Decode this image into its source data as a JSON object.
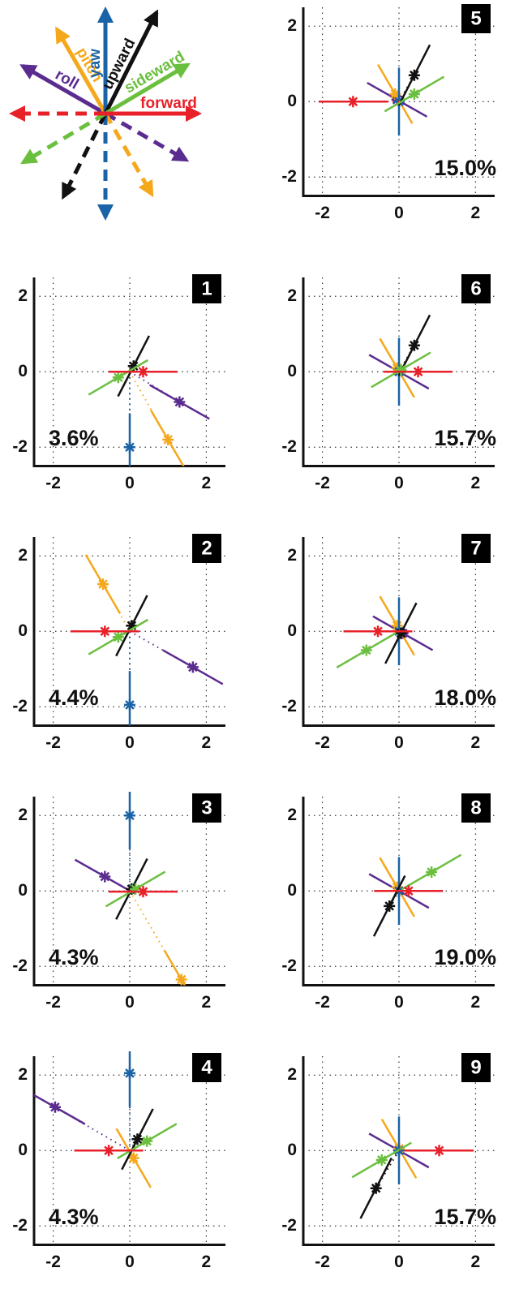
{
  "legend": {
    "items": [
      {
        "label": "roll",
        "color": "#5b2c8f"
      },
      {
        "label": "pitch",
        "color": "#f5a81c"
      },
      {
        "label": "yaw",
        "color": "#1a63a6"
      },
      {
        "label": "upward",
        "color": "#111111"
      },
      {
        "label": "sideward",
        "color": "#6bbf3f"
      },
      {
        "label": "forward",
        "color": "#e8202a"
      }
    ]
  },
  "chart_data": [
    {
      "type": "scatter",
      "title": "1",
      "annotation": "3.6%",
      "xlim": [
        -2.5,
        2.5
      ],
      "ylim": [
        -2.5,
        2.5
      ],
      "xticks": [
        -2,
        0,
        2
      ],
      "yticks": [
        -2,
        0,
        2
      ],
      "grid": true,
      "series": [
        {
          "x": [
            1.3
          ],
          "values": [
            -0.8
          ]
        },
        {
          "x": [
            1.0
          ],
          "values": [
            -1.8
          ]
        },
        {
          "x": [
            0
          ],
          "values": [
            -2.0
          ]
        },
        {
          "x": [
            0.1
          ],
          "values": [
            0.15
          ]
        },
        {
          "x": [
            -0.3
          ],
          "values": [
            -0.15
          ]
        },
        {
          "x": [
            0.35
          ],
          "values": [
            0
          ]
        }
      ]
    },
    {
      "type": "scatter",
      "title": "2",
      "annotation": "4.4%",
      "xlim": [
        -2.5,
        2.5
      ],
      "ylim": [
        -2.5,
        2.5
      ],
      "xticks": [
        -2,
        0,
        2
      ],
      "yticks": [
        -2,
        0,
        2
      ],
      "grid": true,
      "series": [
        {
          "x": [
            1.65
          ],
          "values": [
            -0.95
          ]
        },
        {
          "x": [
            -0.7
          ],
          "values": [
            1.25
          ]
        },
        {
          "x": [
            0
          ],
          "values": [
            -1.95
          ]
        },
        {
          "x": [
            0.05
          ],
          "values": [
            0.15
          ]
        },
        {
          "x": [
            -0.3
          ],
          "values": [
            -0.15
          ]
        },
        {
          "x": [
            -0.65
          ],
          "values": [
            0
          ]
        }
      ]
    },
    {
      "type": "scatter",
      "title": "3",
      "annotation": "4.3%",
      "xlim": [
        -2.5,
        2.5
      ],
      "ylim": [
        -2.5,
        2.5
      ],
      "xticks": [
        -2,
        0,
        2
      ],
      "yticks": [
        -2,
        0,
        2
      ],
      "grid": true,
      "series": [
        {
          "x": [
            -0.65
          ],
          "values": [
            0.38
          ]
        },
        {
          "x": [
            1.35
          ],
          "values": [
            -2.35
          ]
        },
        {
          "x": [
            0
          ],
          "values": [
            2.0
          ]
        },
        {
          "x": [
            0.05
          ],
          "values": [
            0.05
          ]
        },
        {
          "x": [
            0.15
          ],
          "values": [
            0.05
          ]
        },
        {
          "x": [
            0.35
          ],
          "values": [
            -0.02
          ]
        }
      ]
    },
    {
      "type": "scatter",
      "title": "4",
      "annotation": "4.3%",
      "xlim": [
        -2.5,
        2.5
      ],
      "ylim": [
        -2.5,
        2.5
      ],
      "xticks": [
        -2,
        0,
        2
      ],
      "yticks": [
        -2,
        0,
        2
      ],
      "grid": true,
      "series": [
        {
          "x": [
            -1.95
          ],
          "values": [
            1.15
          ]
        },
        {
          "x": [
            0.1
          ],
          "values": [
            -0.2
          ]
        },
        {
          "x": [
            0
          ],
          "values": [
            2.05
          ]
        },
        {
          "x": [
            0.2
          ],
          "values": [
            0.3
          ]
        },
        {
          "x": [
            0.45
          ],
          "values": [
            0.25
          ]
        },
        {
          "x": [
            -0.55
          ],
          "values": [
            0
          ]
        }
      ]
    },
    {
      "type": "scatter",
      "title": "5",
      "annotation": "15.0%",
      "xlim": [
        -2.5,
        2.5
      ],
      "ylim": [
        -2.5,
        2.5
      ],
      "xticks": [
        -2,
        0,
        2
      ],
      "yticks": [
        -2,
        0,
        2
      ],
      "grid": true,
      "series": [
        {
          "x": [
            -0.05
          ],
          "values": [
            0.05
          ]
        },
        {
          "x": [
            -0.1
          ],
          "values": [
            0.2
          ]
        },
        {
          "x": [
            0
          ],
          "values": [
            0
          ]
        },
        {
          "x": [
            0.4
          ],
          "values": [
            0.7
          ]
        },
        {
          "x": [
            0.4
          ],
          "values": [
            0.2
          ]
        },
        {
          "x": [
            -1.2
          ],
          "values": [
            0
          ]
        }
      ]
    },
    {
      "type": "scatter",
      "title": "6",
      "annotation": "15.7%",
      "xlim": [
        -2.5,
        2.5
      ],
      "ylim": [
        -2.5,
        2.5
      ],
      "xticks": [
        -2,
        0,
        2
      ],
      "yticks": [
        -2,
        0,
        2
      ],
      "grid": true,
      "series": [
        {
          "x": [
            0
          ],
          "values": [
            0
          ]
        },
        {
          "x": [
            -0.05
          ],
          "values": [
            0.1
          ]
        },
        {
          "x": [
            0
          ],
          "values": [
            0
          ]
        },
        {
          "x": [
            0.4
          ],
          "values": [
            0.7
          ]
        },
        {
          "x": [
            0.05
          ],
          "values": [
            0.05
          ]
        },
        {
          "x": [
            0.5
          ],
          "values": [
            0
          ]
        }
      ]
    },
    {
      "type": "scatter",
      "title": "7",
      "annotation": "18.0%",
      "xlim": [
        -2.5,
        2.5
      ],
      "ylim": [
        -2.5,
        2.5
      ],
      "xticks": [
        -2,
        0,
        2
      ],
      "yticks": [
        -2,
        0,
        2
      ],
      "grid": true,
      "series": [
        {
          "x": [
            0.1
          ],
          "values": [
            -0.05
          ]
        },
        {
          "x": [
            -0.05
          ],
          "values": [
            0.15
          ]
        },
        {
          "x": [
            0
          ],
          "values": [
            0
          ]
        },
        {
          "x": [
            0.05
          ],
          "values": [
            -0.05
          ]
        },
        {
          "x": [
            -0.85
          ],
          "values": [
            -0.5
          ]
        },
        {
          "x": [
            -0.55
          ],
          "values": [
            0
          ]
        }
      ]
    },
    {
      "type": "scatter",
      "title": "8",
      "annotation": "19.0%",
      "xlim": [
        -2.5,
        2.5
      ],
      "ylim": [
        -2.5,
        2.5
      ],
      "xticks": [
        -2,
        0,
        2
      ],
      "yticks": [
        -2,
        0,
        2
      ],
      "grid": true,
      "series": [
        {
          "x": [
            0
          ],
          "values": [
            0
          ]
        },
        {
          "x": [
            -0.05
          ],
          "values": [
            0.1
          ]
        },
        {
          "x": [
            0
          ],
          "values": [
            0
          ]
        },
        {
          "x": [
            -0.25
          ],
          "values": [
            -0.4
          ]
        },
        {
          "x": [
            0.85
          ],
          "values": [
            0.5
          ]
        },
        {
          "x": [
            0.25
          ],
          "values": [
            0
          ]
        }
      ]
    },
    {
      "type": "scatter",
      "title": "9",
      "annotation": "15.7%",
      "xlim": [
        -2.5,
        2.5
      ],
      "ylim": [
        -2.5,
        2.5
      ],
      "xticks": [
        -2,
        0,
        2
      ],
      "yticks": [
        -2,
        0,
        2
      ],
      "grid": true,
      "series": [
        {
          "x": [
            0
          ],
          "values": [
            0
          ]
        },
        {
          "x": [
            0
          ],
          "values": [
            0.05
          ]
        },
        {
          "x": [
            0
          ],
          "values": [
            0
          ]
        },
        {
          "x": [
            -0.6
          ],
          "values": [
            -1.0
          ]
        },
        {
          "x": [
            -0.45
          ],
          "values": [
            -0.25
          ]
        },
        {
          "x": [
            1.05
          ],
          "values": [
            0
          ]
        }
      ]
    }
  ]
}
